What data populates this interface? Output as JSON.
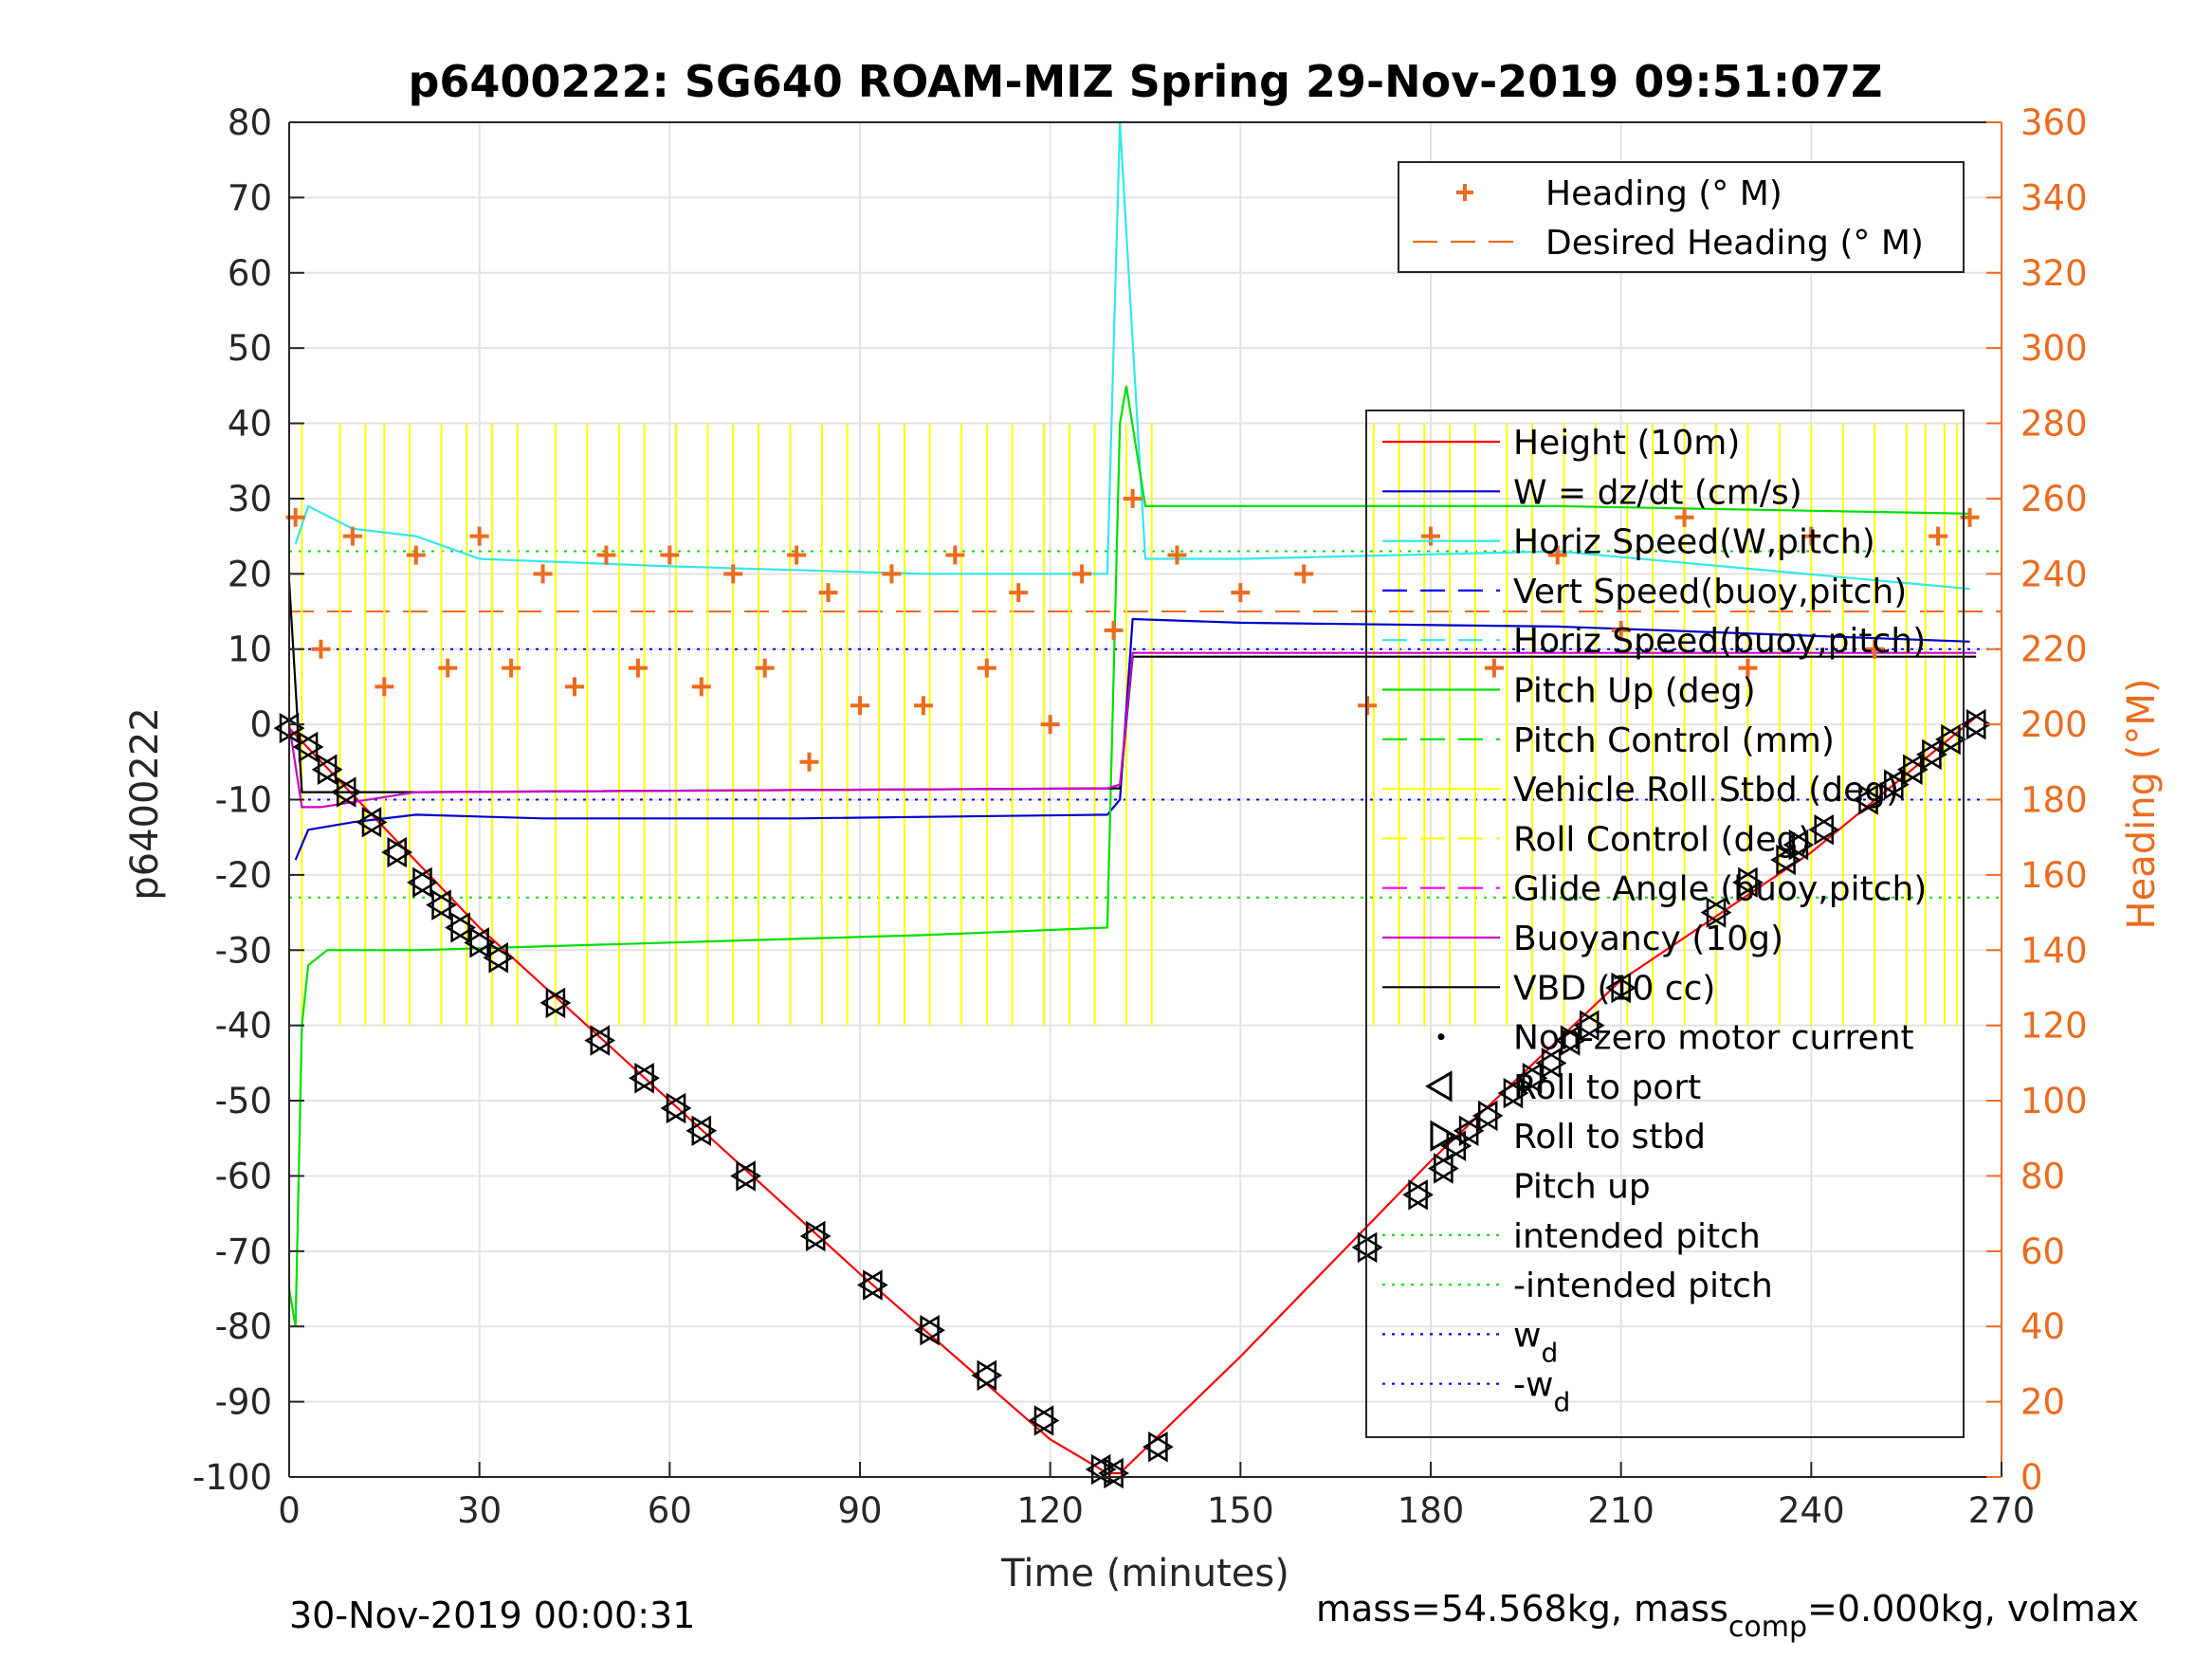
{
  "chart_data": {
    "type": "line",
    "title": "p6400222: SG640 ROAM-MIZ Spring 29-Nov-2019 09:51:07Z",
    "xlabel": "Time (minutes)",
    "ylabel": "p6400222",
    "y2label": "Heading (°M)",
    "xlim": [
      0,
      270
    ],
    "ylim": [
      -100,
      80
    ],
    "y2lim": [
      0,
      360
    ],
    "xticks": [
      "0",
      "30",
      "60",
      "90",
      "120",
      "150",
      "180",
      "210",
      "240",
      "270"
    ],
    "yticks": [
      "-100",
      "-90",
      "-80",
      "-70",
      "-60",
      "-50",
      "-40",
      "-30",
      "-20",
      "-10",
      "0",
      "10",
      "20",
      "30",
      "40",
      "50",
      "60",
      "70",
      "80"
    ],
    "y2ticks": [
      "0",
      "20",
      "40",
      "60",
      "80",
      "100",
      "120",
      "140",
      "160",
      "180",
      "200",
      "220",
      "240",
      "260",
      "280",
      "300",
      "320",
      "340",
      "360"
    ],
    "grid": true,
    "footer_left": "30-Nov-2019 00:00:31",
    "footer_right": "mass=54.568kg, mass",
    "footer_right_sub": "comp",
    "footer_right_tail": "=0.000kg, volmax",
    "legend_heading": [
      {
        "name": "Heading (° M)",
        "color": "#ec6b1d",
        "style": "plus"
      },
      {
        "name": "Desired Heading (° M)",
        "color": "#ec6b1d",
        "style": "dash"
      }
    ],
    "legend_main": [
      {
        "name": "Height (10m)",
        "color": "#ff0000",
        "style": "solid"
      },
      {
        "name": "W = dz/dt (cm/s)",
        "color": "#0000cd",
        "style": "solid"
      },
      {
        "name": "Horiz Speed(W,pitch)",
        "color": "#33e8e8",
        "style": "solid"
      },
      {
        "name": "Vert Speed(buoy,pitch)",
        "color": "#0000ff",
        "style": "dash"
      },
      {
        "name": "Horiz Speed(buoy,pitch)",
        "color": "#33e8e8",
        "style": "dash"
      },
      {
        "name": "Pitch Up (deg)",
        "color": "#00e000",
        "style": "solid"
      },
      {
        "name": "Pitch Control (mm)",
        "color": "#00e000",
        "style": "dash"
      },
      {
        "name": "Vehicle Roll Stbd (deg)",
        "color": "#ffff00",
        "style": "solid"
      },
      {
        "name": "Roll Control (deg)",
        "color": "#ffff00",
        "style": "dash"
      },
      {
        "name": "Glide Angle (buoy,pitch)",
        "color": "#ff00ff",
        "style": "dash"
      },
      {
        "name": "Buoyancy (10g)",
        "color": "#cc00cc",
        "style": "solid"
      },
      {
        "name": "VBD (10 cc)",
        "color": "#000000",
        "style": "solid"
      },
      {
        "name": "Non-zero motor current",
        "color": "#000000",
        "style": "dot"
      },
      {
        "name": "Roll to port",
        "color": "#000000",
        "style": "tri-left"
      },
      {
        "name": "Roll to stbd",
        "color": "#000000",
        "style": "tri-right"
      },
      {
        "name": "Pitch up",
        "color": "#000000",
        "style": "none"
      },
      {
        "name": "intended pitch",
        "color": "#00e000",
        "style": "dotted"
      },
      {
        "name": "-intended pitch",
        "color": "#00e000",
        "style": "dotted"
      },
      {
        "name": "w",
        "sub": "d",
        "color": "#0000ff",
        "style": "dotted"
      },
      {
        "name": "-w",
        "sub": "d",
        "color": "#0000ff",
        "style": "dotted"
      }
    ],
    "series": [
      {
        "name": "Height (10m)",
        "color": "#ff0000",
        "x": [
          0,
          30,
          60,
          90,
          120,
          129,
          131,
          150,
          180,
          210,
          240,
          266
        ],
        "y": [
          -0.5,
          -27,
          -50,
          -73,
          -95,
          -99.5,
          -99.5,
          -84,
          -58,
          -34,
          -17,
          1
        ]
      },
      {
        "name": "W = dz/dt (cm/s)",
        "color": "#0000cd",
        "x": [
          1,
          3,
          10,
          20,
          40,
          80,
          129,
          131,
          133,
          150,
          200,
          265
        ],
        "y": [
          -18,
          -14,
          -13,
          -12,
          -12.5,
          -12.5,
          -12,
          -10,
          14,
          13.5,
          13,
          11
        ]
      },
      {
        "name": "Horiz Speed(W,pitch)",
        "color": "#33e8e8",
        "x": [
          1,
          3,
          10,
          20,
          30,
          60,
          100,
          129,
          131,
          135,
          150,
          200,
          265
        ],
        "y": [
          24,
          29,
          26,
          25,
          22,
          21,
          20,
          20,
          80,
          22,
          22,
          23,
          18
        ]
      },
      {
        "name": "Pitch Up (deg)",
        "color": "#00e000",
        "x": [
          0,
          1,
          2,
          3,
          6,
          20,
          60,
          100,
          129,
          131,
          132,
          135,
          150,
          200,
          265
        ],
        "y": [
          -75,
          -80,
          -40,
          -32,
          -30,
          -30,
          -29,
          -28,
          -27,
          40,
          45,
          29,
          29,
          29,
          28
        ]
      },
      {
        "name": "VBD (10 cc)",
        "color": "#000000",
        "x": [
          0,
          2,
          20,
          129,
          131,
          133,
          200,
          266
        ],
        "y": [
          19,
          -9,
          -9,
          -8.5,
          -8.5,
          9,
          9,
          9
        ]
      },
      {
        "name": "Buoyancy (10g)",
        "color": "#cc00cc",
        "x": [
          0,
          2,
          5,
          20,
          129,
          131,
          133,
          200,
          266
        ],
        "y": [
          0,
          -11,
          -11,
          -9,
          -8.5,
          -8,
          9.5,
          9.5,
          9.5
        ]
      }
    ],
    "heading": {
      "name": "Heading (° M)",
      "x": [
        1,
        5,
        10,
        15,
        20,
        25,
        30,
        35,
        40,
        45,
        50,
        55,
        60,
        65,
        70,
        75,
        80,
        82,
        85,
        90,
        95,
        100,
        105,
        110,
        115,
        120,
        125,
        130,
        133,
        140,
        150,
        160,
        170,
        180,
        190,
        200,
        210,
        220,
        230,
        240,
        250,
        260,
        265
      ],
      "y": [
        255,
        220,
        250,
        210,
        245,
        215,
        250,
        215,
        240,
        210,
        245,
        215,
        245,
        210,
        240,
        215,
        245,
        190,
        235,
        205,
        240,
        205,
        245,
        215,
        235,
        200,
        240,
        225,
        260,
        245,
        235,
        240,
        205,
        250,
        215,
        245,
        225,
        255,
        215,
        250,
        220,
        250,
        255
      ]
    },
    "desired_heading": {
      "name": "Desired Heading (° M)",
      "value": 230
    },
    "intended_pitch": 23,
    "w_d": 10,
    "markers": {
      "x": [
        0,
        3,
        6,
        9,
        13,
        17,
        21,
        24,
        27,
        30,
        33,
        42,
        49,
        56,
        61,
        65,
        72,
        83,
        92,
        101,
        110,
        119,
        128,
        130,
        137,
        170,
        178,
        182,
        184,
        186,
        189,
        193,
        196,
        199,
        202,
        205,
        210,
        225,
        230,
        236,
        238,
        242,
        249,
        253,
        256,
        259,
        262,
        266
      ],
      "y": [
        -0.5,
        -3,
        -6,
        -9,
        -13,
        -17,
        -21,
        -24,
        -27,
        -29,
        -31,
        -37,
        -42,
        -47,
        -51,
        -54,
        -60,
        -68,
        -74.5,
        -80.5,
        -86.5,
        -92.5,
        -99,
        -99.5,
        -96,
        -69.5,
        -62.5,
        -59,
        -56,
        -54,
        -52,
        -49,
        -47,
        -45,
        -42,
        -40,
        -35,
        -25,
        -21,
        -18,
        -16,
        -14,
        -10,
        -8,
        -6,
        -4,
        -2,
        0
      ]
    },
    "roll_y": [
      -40,
      40
    ],
    "roll_x": [
      2,
      8,
      12,
      15,
      19,
      24,
      28,
      32,
      36,
      42,
      47,
      52,
      56,
      61,
      66,
      70,
      74,
      79,
      84,
      88,
      93,
      97,
      101,
      106,
      110,
      114,
      119,
      123,
      127,
      132,
      136,
      171,
      175,
      179,
      183,
      187,
      192,
      196,
      201,
      206,
      211,
      215,
      220,
      225,
      230,
      235,
      240,
      245,
      250,
      255,
      258,
      261,
      263
    ]
  }
}
